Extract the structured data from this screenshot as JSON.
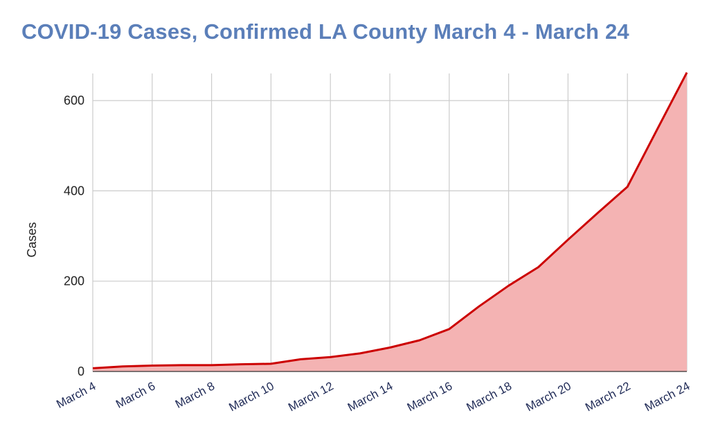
{
  "chart_data": {
    "type": "area",
    "title": "COVID-19 Cases, Confirmed LA County March 4 - March 24",
    "ylabel": "Cases",
    "xlabel": "",
    "ylim": [
      0,
      660
    ],
    "yticks": [
      0,
      200,
      400,
      600
    ],
    "x": [
      "March 4",
      "March 5",
      "March 6",
      "March 7",
      "March 8",
      "March 9",
      "March 10",
      "March 11",
      "March 12",
      "March 13",
      "March 14",
      "March 15",
      "March 16",
      "March 17",
      "March 18",
      "March 19",
      "March 20",
      "March 21",
      "March 22",
      "March 23",
      "March 24"
    ],
    "xtick_labels": [
      "March 4",
      "March 6",
      "March 8",
      "March 10",
      "March 12",
      "March 14",
      "March 16",
      "March 18",
      "March 20",
      "March 22",
      "March 24"
    ],
    "series": [
      {
        "values": [
          7,
          11,
          13,
          14,
          14,
          16,
          17,
          27,
          32,
          40,
          53,
          69,
          94,
          144,
          190,
          231,
          292,
          351,
          409,
          536,
          662
        ],
        "line_color": "#cc0000",
        "fill_color": "#f4b3b3"
      }
    ],
    "grid": true,
    "legend": "none"
  }
}
